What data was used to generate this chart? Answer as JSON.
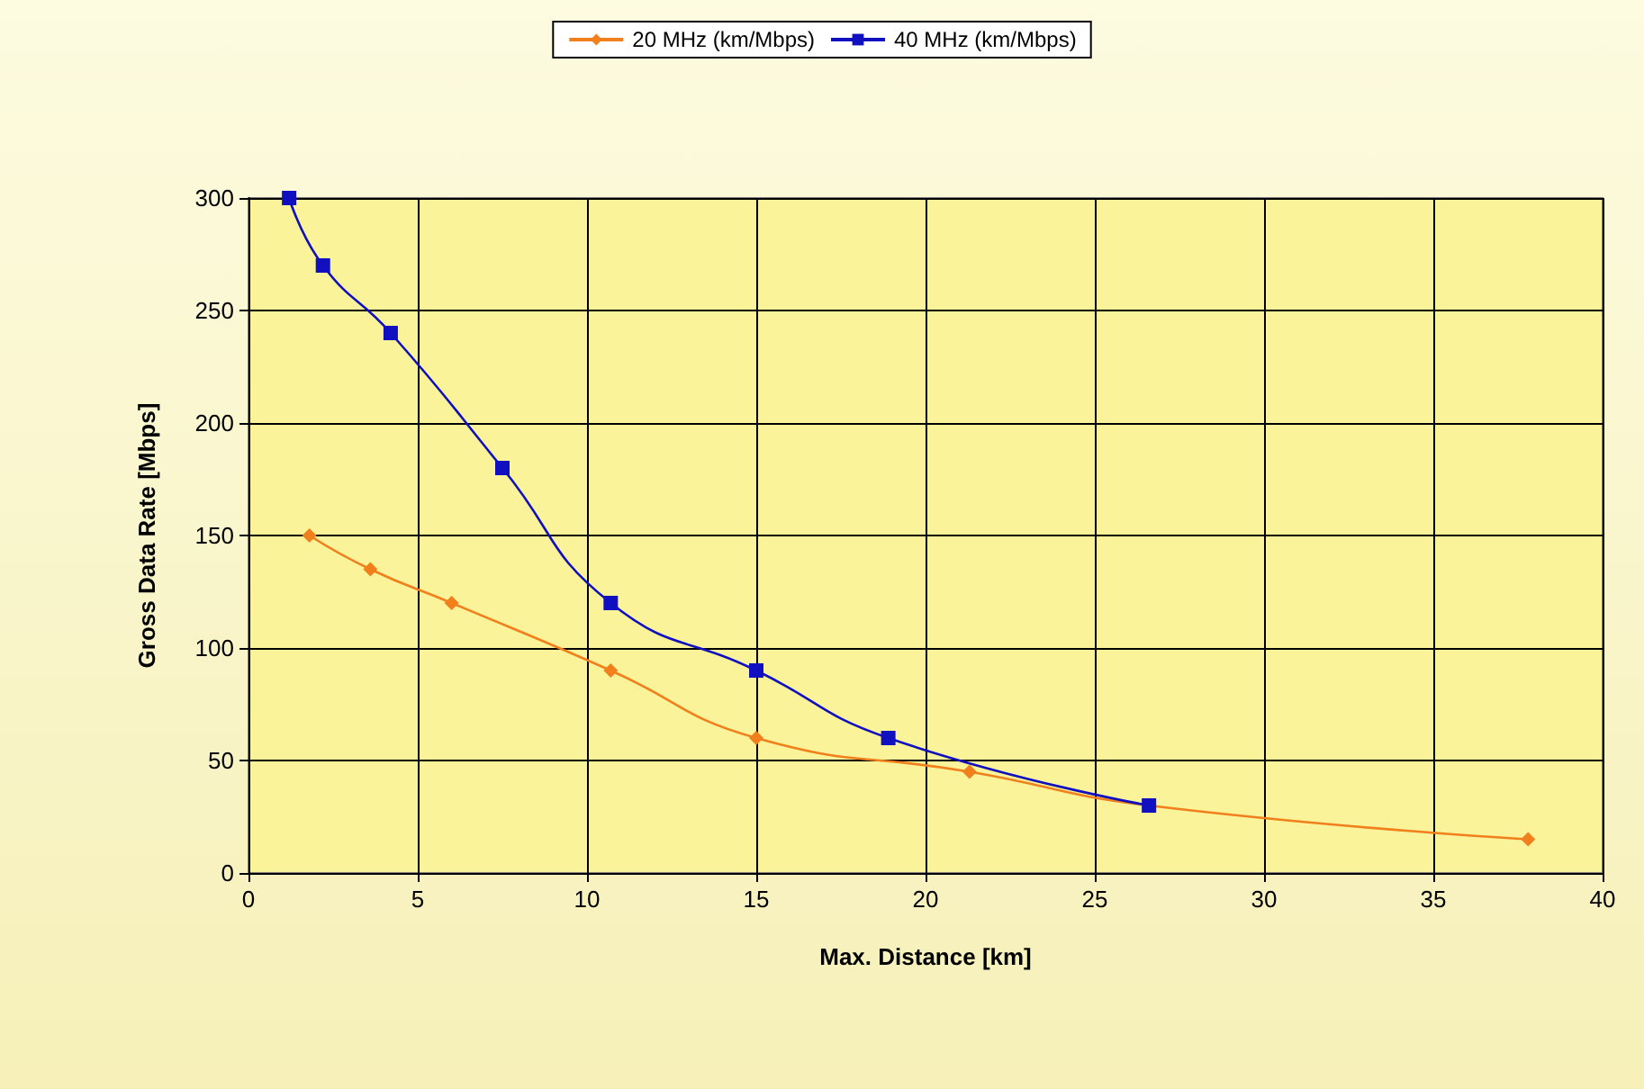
{
  "chart_data": {
    "type": "line",
    "xlabel": "Max. Distance [km]",
    "ylabel": "Gross Data Rate [Mbps]",
    "xlim": [
      0,
      40
    ],
    "xticks": [
      0,
      5,
      10,
      15,
      20,
      25,
      30,
      35,
      40
    ],
    "ylim": [
      0,
      300
    ],
    "yticks": [
      0,
      50,
      100,
      150,
      200,
      250,
      300
    ],
    "grid": true,
    "legend": "top",
    "series": [
      {
        "name": "20 MHz (km/Mbps)",
        "color": "#f07f1c",
        "marker": "diamond",
        "x": [
          1.8,
          3.6,
          6.0,
          10.7,
          15.0,
          21.3,
          26.6,
          37.8
        ],
        "values": [
          150,
          135,
          120,
          90,
          60,
          45,
          30,
          15
        ]
      },
      {
        "name": "40 MHz (km/Mbps)",
        "color": "#1010c0",
        "marker": "square",
        "x": [
          1.2,
          2.2,
          4.2,
          7.5,
          10.7,
          15.0,
          18.9,
          26.6
        ],
        "values": [
          300,
          270,
          240,
          180,
          120,
          90,
          60,
          30
        ]
      }
    ]
  }
}
